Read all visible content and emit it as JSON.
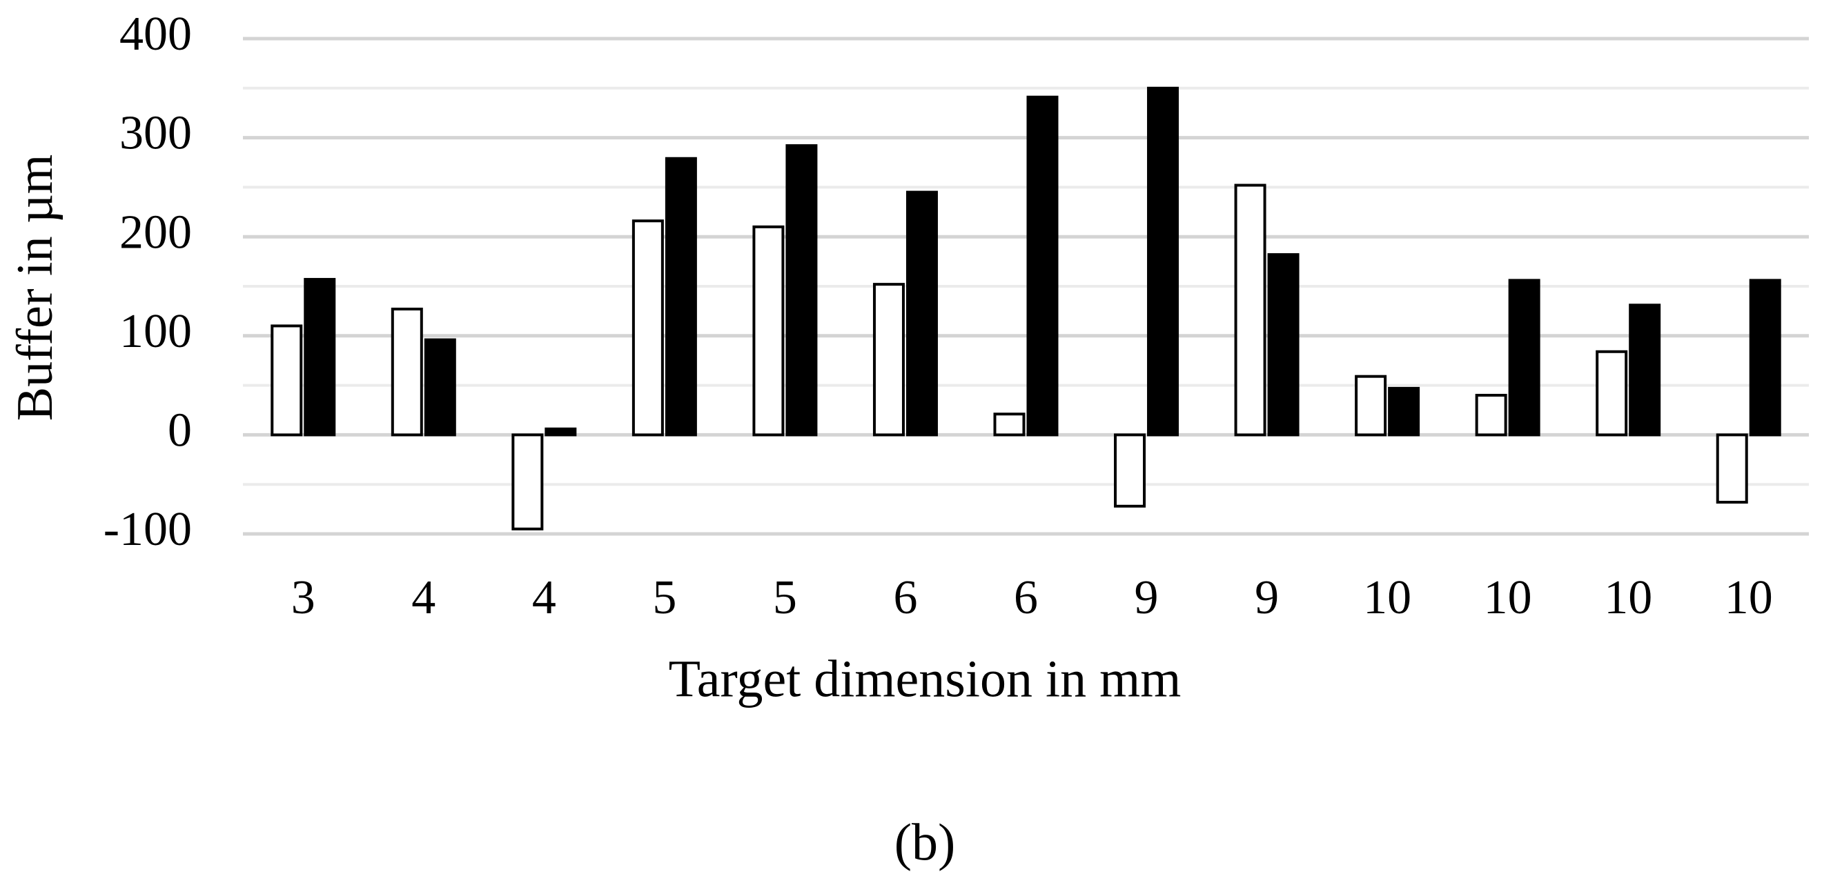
{
  "chart_data": {
    "type": "bar",
    "x_label": "Target dimension in mm",
    "y_label": "Buffer in µm",
    "caption": "(b)",
    "categories": [
      "3",
      "4",
      "4",
      "5",
      "5",
      "6",
      "6",
      "9",
      "9",
      "10",
      "10",
      "10",
      "10"
    ],
    "series": [
      {
        "color": "#ffffff",
        "values": [
          110,
          127,
          -95,
          216,
          210,
          152,
          21,
          -72,
          252,
          59,
          40,
          84,
          -68
        ]
      },
      {
        "color": "#000000",
        "values": [
          157,
          96,
          6,
          279,
          292,
          245,
          341,
          350,
          182,
          47,
          156,
          131,
          156
        ]
      }
    ],
    "ylim": [
      -100,
      400
    ],
    "yticks": [
      -100,
      0,
      100,
      200,
      300,
      400
    ],
    "minor_gridlines": [
      -50,
      50,
      150,
      250,
      350
    ],
    "grid": true
  }
}
